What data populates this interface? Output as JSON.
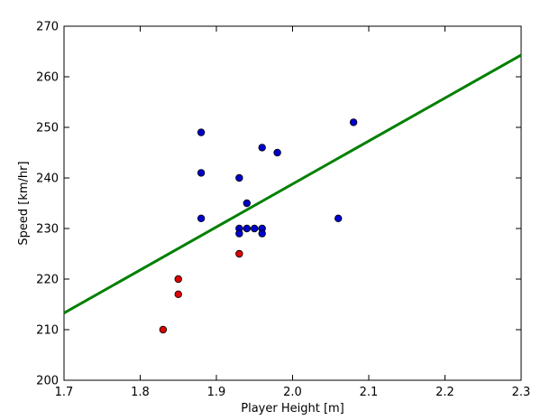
{
  "chart_data": {
    "type": "scatter",
    "title": "",
    "xlabel": "Player Height [m]",
    "ylabel": "Speed [km/hr]",
    "xlim": [
      1.7,
      2.3
    ],
    "ylim": [
      200,
      270
    ],
    "x_ticks": [
      "1.7",
      "1.8",
      "1.9",
      "2.0",
      "2.1",
      "2.2",
      "2.3"
    ],
    "y_ticks": [
      "200",
      "210",
      "220",
      "230",
      "240",
      "250",
      "260",
      "270"
    ],
    "grid": false,
    "legend": "none",
    "series": [
      {
        "color": "#0000cc",
        "points": [
          {
            "x": 1.88,
            "y": 249
          },
          {
            "x": 1.88,
            "y": 241
          },
          {
            "x": 1.88,
            "y": 232
          },
          {
            "x": 1.93,
            "y": 240
          },
          {
            "x": 1.93,
            "y": 230
          },
          {
            "x": 1.93,
            "y": 229
          },
          {
            "x": 1.94,
            "y": 235
          },
          {
            "x": 1.94,
            "y": 230
          },
          {
            "x": 1.95,
            "y": 230
          },
          {
            "x": 1.96,
            "y": 246
          },
          {
            "x": 1.96,
            "y": 230
          },
          {
            "x": 1.96,
            "y": 229
          },
          {
            "x": 1.98,
            "y": 245
          },
          {
            "x": 2.06,
            "y": 232
          },
          {
            "x": 2.08,
            "y": 251
          }
        ]
      },
      {
        "color": "#dd0000",
        "points": [
          {
            "x": 1.83,
            "y": 210
          },
          {
            "x": 1.85,
            "y": 220
          },
          {
            "x": 1.85,
            "y": 217
          },
          {
            "x": 1.93,
            "y": 225
          }
        ]
      }
    ],
    "fit_line": {
      "color": "#008000",
      "x": [
        1.7,
        2.3
      ],
      "y": [
        213.3,
        264.3
      ]
    }
  }
}
